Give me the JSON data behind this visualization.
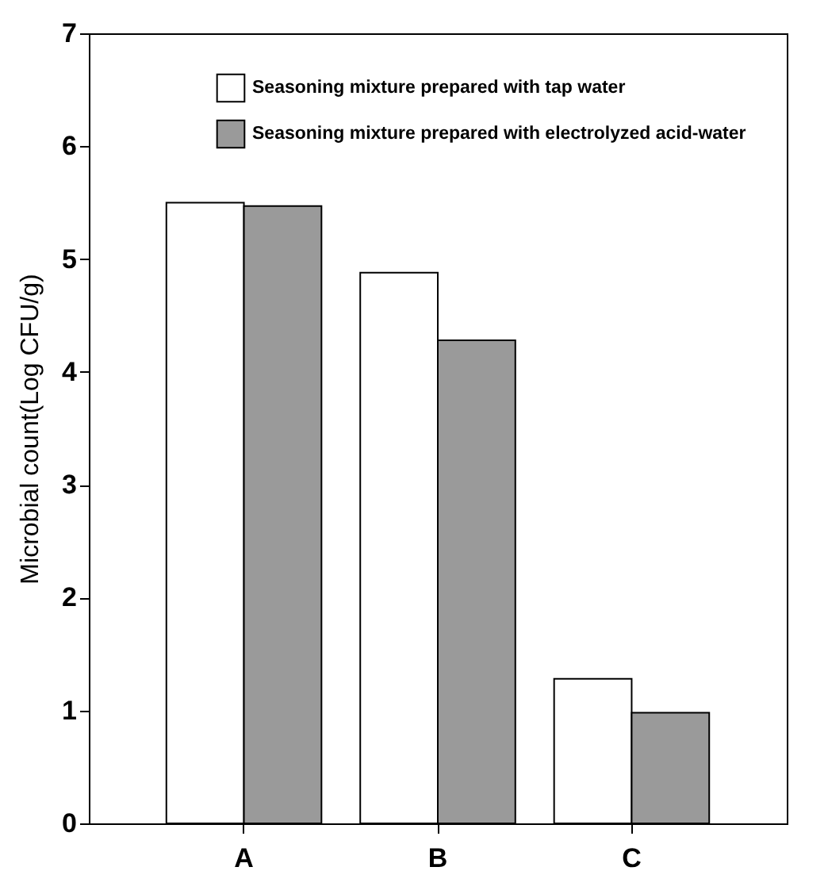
{
  "chart_data": {
    "type": "bar",
    "ylabel": "Microbial count(Log CFU/g)",
    "categories": [
      "A",
      "B",
      "C"
    ],
    "series": [
      {
        "name": "Seasoning mixture prepared with tap water",
        "color": "#ffffff",
        "values": [
          5.5,
          4.88,
          1.28
        ]
      },
      {
        "name": "Seasoning mixture prepared with electrolyzed acid-water",
        "color": "#9a9a9a",
        "values": [
          5.47,
          4.28,
          0.98
        ]
      }
    ],
    "ylim": [
      0,
      7
    ],
    "yticks": [
      0,
      1,
      2,
      3,
      4,
      5,
      6,
      7
    ],
    "grid": false,
    "legend": "top right"
  }
}
